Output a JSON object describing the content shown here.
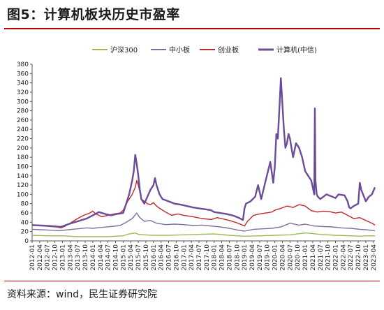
{
  "header": {
    "title": "图5：计算机板块历史市盈率"
  },
  "footer": {
    "source": "资料来源：wind，民生证券研究院"
  },
  "chart_data": {
    "type": "line",
    "title": "图5：计算机板块历史市盈率",
    "xlabel": "",
    "ylabel": "",
    "ylim": [
      0,
      380
    ],
    "yticks": [
      0,
      20,
      40,
      60,
      80,
      100,
      120,
      140,
      160,
      180,
      200,
      220,
      240,
      260,
      280,
      300,
      320,
      340,
      360,
      380
    ],
    "grid": false,
    "legend_position": "top",
    "x_tick_labels": [
      "2012-01",
      "2012-04",
      "2012-07",
      "2012-10",
      "2013-01",
      "2013-04",
      "2013-07",
      "2013-10",
      "2014-01",
      "2014-04",
      "2014-07",
      "2014-10",
      "2015-01",
      "2015-04",
      "2015-07",
      "2015-10",
      "2016-01",
      "2016-04",
      "2016-07",
      "2016-10",
      "2017-01",
      "2017-04",
      "2017-07",
      "2017-10",
      "2018-01",
      "2018-04",
      "2018-07",
      "2018-10",
      "2019-01",
      "2019-04",
      "2019-07",
      "2019-10",
      "2020-01",
      "2020-04",
      "2020-07",
      "2020-10",
      "2021-01",
      "2021-04",
      "2021-07",
      "2021-10",
      "2022-01",
      "2022-04",
      "2022-07",
      "2022-10",
      "2023-01",
      "2023-04"
    ],
    "series": [
      {
        "name": "沪深300",
        "color": "#9bbb59",
        "x": [
          2012.0,
          2012.5,
          2013.0,
          2013.5,
          2014.0,
          2014.5,
          2015.0,
          2015.2,
          2015.4,
          2015.5,
          2015.7,
          2016.0,
          2016.5,
          2017.0,
          2017.5,
          2018.0,
          2018.5,
          2019.0,
          2019.5,
          2020.0,
          2020.5,
          2021.0,
          2021.2,
          2021.5,
          2022.0,
          2022.5,
          2022.8,
          2023.0,
          2023.3
        ],
        "y": [
          12,
          11,
          11,
          9,
          9,
          9,
          11,
          15,
          17,
          14,
          13,
          12,
          12,
          13,
          14,
          15,
          12,
          10,
          11,
          12,
          13,
          17,
          16,
          14,
          12,
          11,
          10,
          11,
          11
        ]
      },
      {
        "name": "中小板",
        "color": "#7f6fa1",
        "x": [
          2012.0,
          2012.3,
          2012.6,
          2012.9,
          2013.2,
          2013.5,
          2013.8,
          2014.0,
          2014.3,
          2014.6,
          2014.9,
          2015.1,
          2015.3,
          2015.45,
          2015.55,
          2015.7,
          2015.9,
          2016.1,
          2016.4,
          2016.7,
          2017.0,
          2017.3,
          2017.6,
          2017.9,
          2018.2,
          2018.5,
          2018.8,
          2019.0,
          2019.3,
          2019.6,
          2019.9,
          2020.2,
          2020.5,
          2020.8,
          2021.0,
          2021.3,
          2021.6,
          2021.9,
          2022.2,
          2022.5,
          2022.8,
          2023.0,
          2023.3
        ],
        "y": [
          25,
          24,
          23,
          22,
          24,
          26,
          28,
          27,
          29,
          31,
          33,
          40,
          48,
          60,
          50,
          42,
          44,
          38,
          35,
          36,
          35,
          33,
          34,
          32,
          30,
          27,
          23,
          21,
          25,
          26,
          27,
          30,
          38,
          34,
          36,
          32,
          31,
          30,
          28,
          27,
          25,
          24,
          22
        ]
      },
      {
        "name": "创业板",
        "color": "#c0282a",
        "x": [
          2012.0,
          2012.2,
          2012.4,
          2012.6,
          2012.8,
          2012.95,
          2013.1,
          2013.3,
          2013.5,
          2013.7,
          2013.9,
          2014.0,
          2014.1,
          2014.3,
          2014.5,
          2014.7,
          2014.9,
          2015.0,
          2015.15,
          2015.3,
          2015.4,
          2015.45,
          2015.5,
          2015.55,
          2015.6,
          2015.7,
          2015.8,
          2015.9,
          2016.0,
          2016.1,
          2016.2,
          2016.4,
          2016.6,
          2016.8,
          2017.0,
          2017.3,
          2017.6,
          2017.9,
          2018.1,
          2018.3,
          2018.5,
          2018.7,
          2018.9,
          2019.0,
          2019.1,
          2019.3,
          2019.5,
          2019.7,
          2019.9,
          2020.0,
          2020.2,
          2020.4,
          2020.6,
          2020.8,
          2021.0,
          2021.2,
          2021.4,
          2021.6,
          2021.8,
          2022.0,
          2022.2,
          2022.4,
          2022.6,
          2022.8,
          2023.0,
          2023.2,
          2023.3
        ],
        "y": [
          35,
          33,
          32,
          31,
          30,
          28,
          32,
          40,
          48,
          55,
          60,
          64,
          58,
          52,
          55,
          58,
          60,
          66,
          85,
          100,
          115,
          130,
          120,
          105,
          90,
          85,
          80,
          78,
          82,
          75,
          70,
          62,
          55,
          58,
          55,
          52,
          48,
          46,
          50,
          47,
          44,
          40,
          35,
          32,
          42,
          55,
          58,
          60,
          62,
          66,
          70,
          75,
          72,
          78,
          75,
          65,
          62,
          64,
          63,
          60,
          62,
          55,
          48,
          50,
          44,
          38,
          34
        ]
      },
      {
        "name": "计算机(中信)",
        "color": "#6b4c9a",
        "x": [
          2012.0,
          2012.3,
          2012.6,
          2012.95,
          2013.2,
          2013.5,
          2013.8,
          2014.0,
          2014.2,
          2014.4,
          2014.6,
          2014.8,
          2015.0,
          2015.1,
          2015.2,
          2015.3,
          2015.35,
          2015.4,
          2015.45,
          2015.5,
          2015.55,
          2015.6,
          2015.7,
          2015.8,
          2015.9,
          2016.0,
          2016.05,
          2016.1,
          2016.2,
          2016.3,
          2016.5,
          2016.7,
          2016.9,
          2017.1,
          2017.3,
          2017.5,
          2017.7,
          2017.9,
          2018.0,
          2018.2,
          2018.4,
          2018.6,
          2018.8,
          2018.95,
          2019.0,
          2019.05,
          2019.2,
          2019.35,
          2019.45,
          2019.55,
          2019.7,
          2019.85,
          2019.95,
          2020.0,
          2020.05,
          2020.1,
          2020.2,
          2020.3,
          2020.35,
          2020.4,
          2020.45,
          2020.5,
          2020.55,
          2020.6,
          2020.7,
          2020.8,
          2020.9,
          2021.0,
          2021.1,
          2021.2,
          2021.3,
          2021.32,
          2021.34,
          2021.38,
          2021.42,
          2021.5,
          2021.7,
          2021.9,
          2022.0,
          2022.1,
          2022.3,
          2022.4,
          2022.45,
          2022.5,
          2022.6,
          2022.75,
          2022.8,
          2022.85,
          2023.0,
          2023.1,
          2023.2,
          2023.3
        ],
        "y": [
          34,
          33,
          32,
          30,
          36,
          42,
          48,
          55,
          62,
          58,
          55,
          58,
          60,
          80,
          100,
          130,
          150,
          185,
          165,
          140,
          110,
          90,
          80,
          95,
          110,
          120,
          135,
          120,
          100,
          90,
          85,
          80,
          78,
          75,
          72,
          70,
          68,
          66,
          62,
          60,
          58,
          55,
          50,
          45,
          70,
          80,
          85,
          95,
          120,
          90,
          130,
          170,
          125,
          160,
          230,
          220,
          350,
          240,
          200,
          210,
          230,
          220,
          200,
          180,
          210,
          200,
          180,
          150,
          140,
          130,
          100,
          285,
          130,
          100,
          95,
          90,
          100,
          95,
          92,
          100,
          98,
          85,
          72,
          70,
          75,
          80,
          125,
          110,
          85,
          95,
          100,
          115
        ]
      }
    ]
  }
}
